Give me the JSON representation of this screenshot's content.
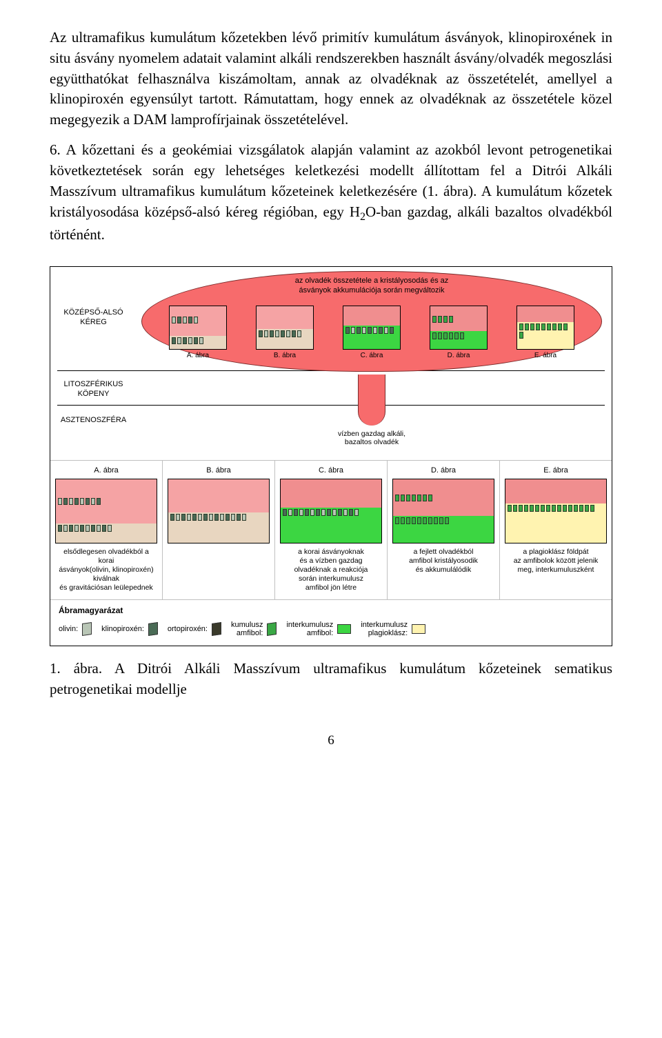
{
  "paragraphs": {
    "p1": "Az ultramafikus kumulátum kőzetekben lévő primitív kumulátum ásványok, klinopiroxének in situ ásvány nyomelem adatait valamint alkáli rendszerekben használt ásvány/olvadék megoszlási együtthatókat felhasználva kiszámoltam, annak az olvadéknak az összetételét, amellyel a klinopiroxén egyensúlyt tartott. Rámutattam, hogy ennek az olvadéknak az összetétele közel megegyezik a DAM lamprofírjainak összetételével.",
    "p2a": "6. A kőzettani és a geokémiai vizsgálatok alapján valamint az azokból levont petrogenetikai következtetések során egy lehetséges keletkezési modellt állítottam fel a Ditrói Alkáli Masszívum ultramafikus kumulátum kőzeteinek keletkezésére (1. ábra). A kumulátum kőzetek kristályosodása középső-alsó kéreg régióban, egy H",
    "p2sub": "2",
    "p2b": "O-ban gazdag, alkáli bazaltos olvadékból történént."
  },
  "figure": {
    "left_labels": {
      "crust": "KÖZÉPSŐ-ALSÓ\nKÉREG",
      "litho": "LITOSZFÉRIKUS\nKÖPENY",
      "asth": "ASZTENOSZFÉRA"
    },
    "oval_caption": "az olvadék összetétele a kristályosodás és az\násványok akkumulációja során megváltozik",
    "stem_caption": "vízben gazdag alkáli,\nbazaltos olvadék",
    "mini_labels": [
      "A. ábra",
      "B. ábra",
      "C. ábra",
      "D. ábra",
      "E. ábra"
    ],
    "panels": [
      {
        "title": "A. ábra",
        "caption": "elsődlegesen olvadékból a korai\násványok(olivin, klinopiroxén) kiválnak\nés gravitációsan leülepednek"
      },
      {
        "title": "B. ábra",
        "caption": ""
      },
      {
        "title": "C. ábra",
        "caption": "a korai ásványoknak\nés a vízben gazdag\nolvadéknak a reakciója\nsorán interkumulusz\namfibol jön létre"
      },
      {
        "title": "D. ábra",
        "caption": "a fejlett olvadékból\namfibol kristályosodik\nés akkumulálódik"
      },
      {
        "title": "E. ábra",
        "caption": "a plagioklász földpát\naz amfibolok között jelenik\nmeg, interkumuluszként"
      }
    ],
    "legend_title": "Ábramagyarázat",
    "legend_items": [
      {
        "label": "olivin:",
        "type": "3d",
        "color": "#b9c6b6"
      },
      {
        "label": "klinopiroxén:",
        "type": "3d",
        "color": "#4a6b56"
      },
      {
        "label": "ortopiroxén:",
        "type": "3d",
        "color": "#3a3a2a"
      },
      {
        "label": "kumulusz\namfibol:",
        "type": "3d",
        "color": "#3aa845"
      },
      {
        "label": "interkumulusz\namfibol:",
        "type": "flat",
        "color": "#3cd642"
      },
      {
        "label": "interkumulusz\nplagioklász:",
        "type": "flat",
        "color": "#fff3b0"
      }
    ],
    "colors": {
      "melt_upper": "#f5a3a4",
      "melt_lower": "#f08e8f",
      "cumulate_bg": "#e8d6c0",
      "olivin": "#b9c6b6",
      "cpx": "#4a6b56",
      "opx": "#3a3a2a",
      "amph_cum": "#3aa845",
      "amph_inter": "#3cd642",
      "plag": "#fff3b0",
      "oval": "#f76b6c"
    }
  },
  "caption": "1. ábra. A Ditrói Alkáli Masszívum ultramafikus kumulátum kőzeteinek sematikus petrogenetikai modellje",
  "page_number": "6"
}
